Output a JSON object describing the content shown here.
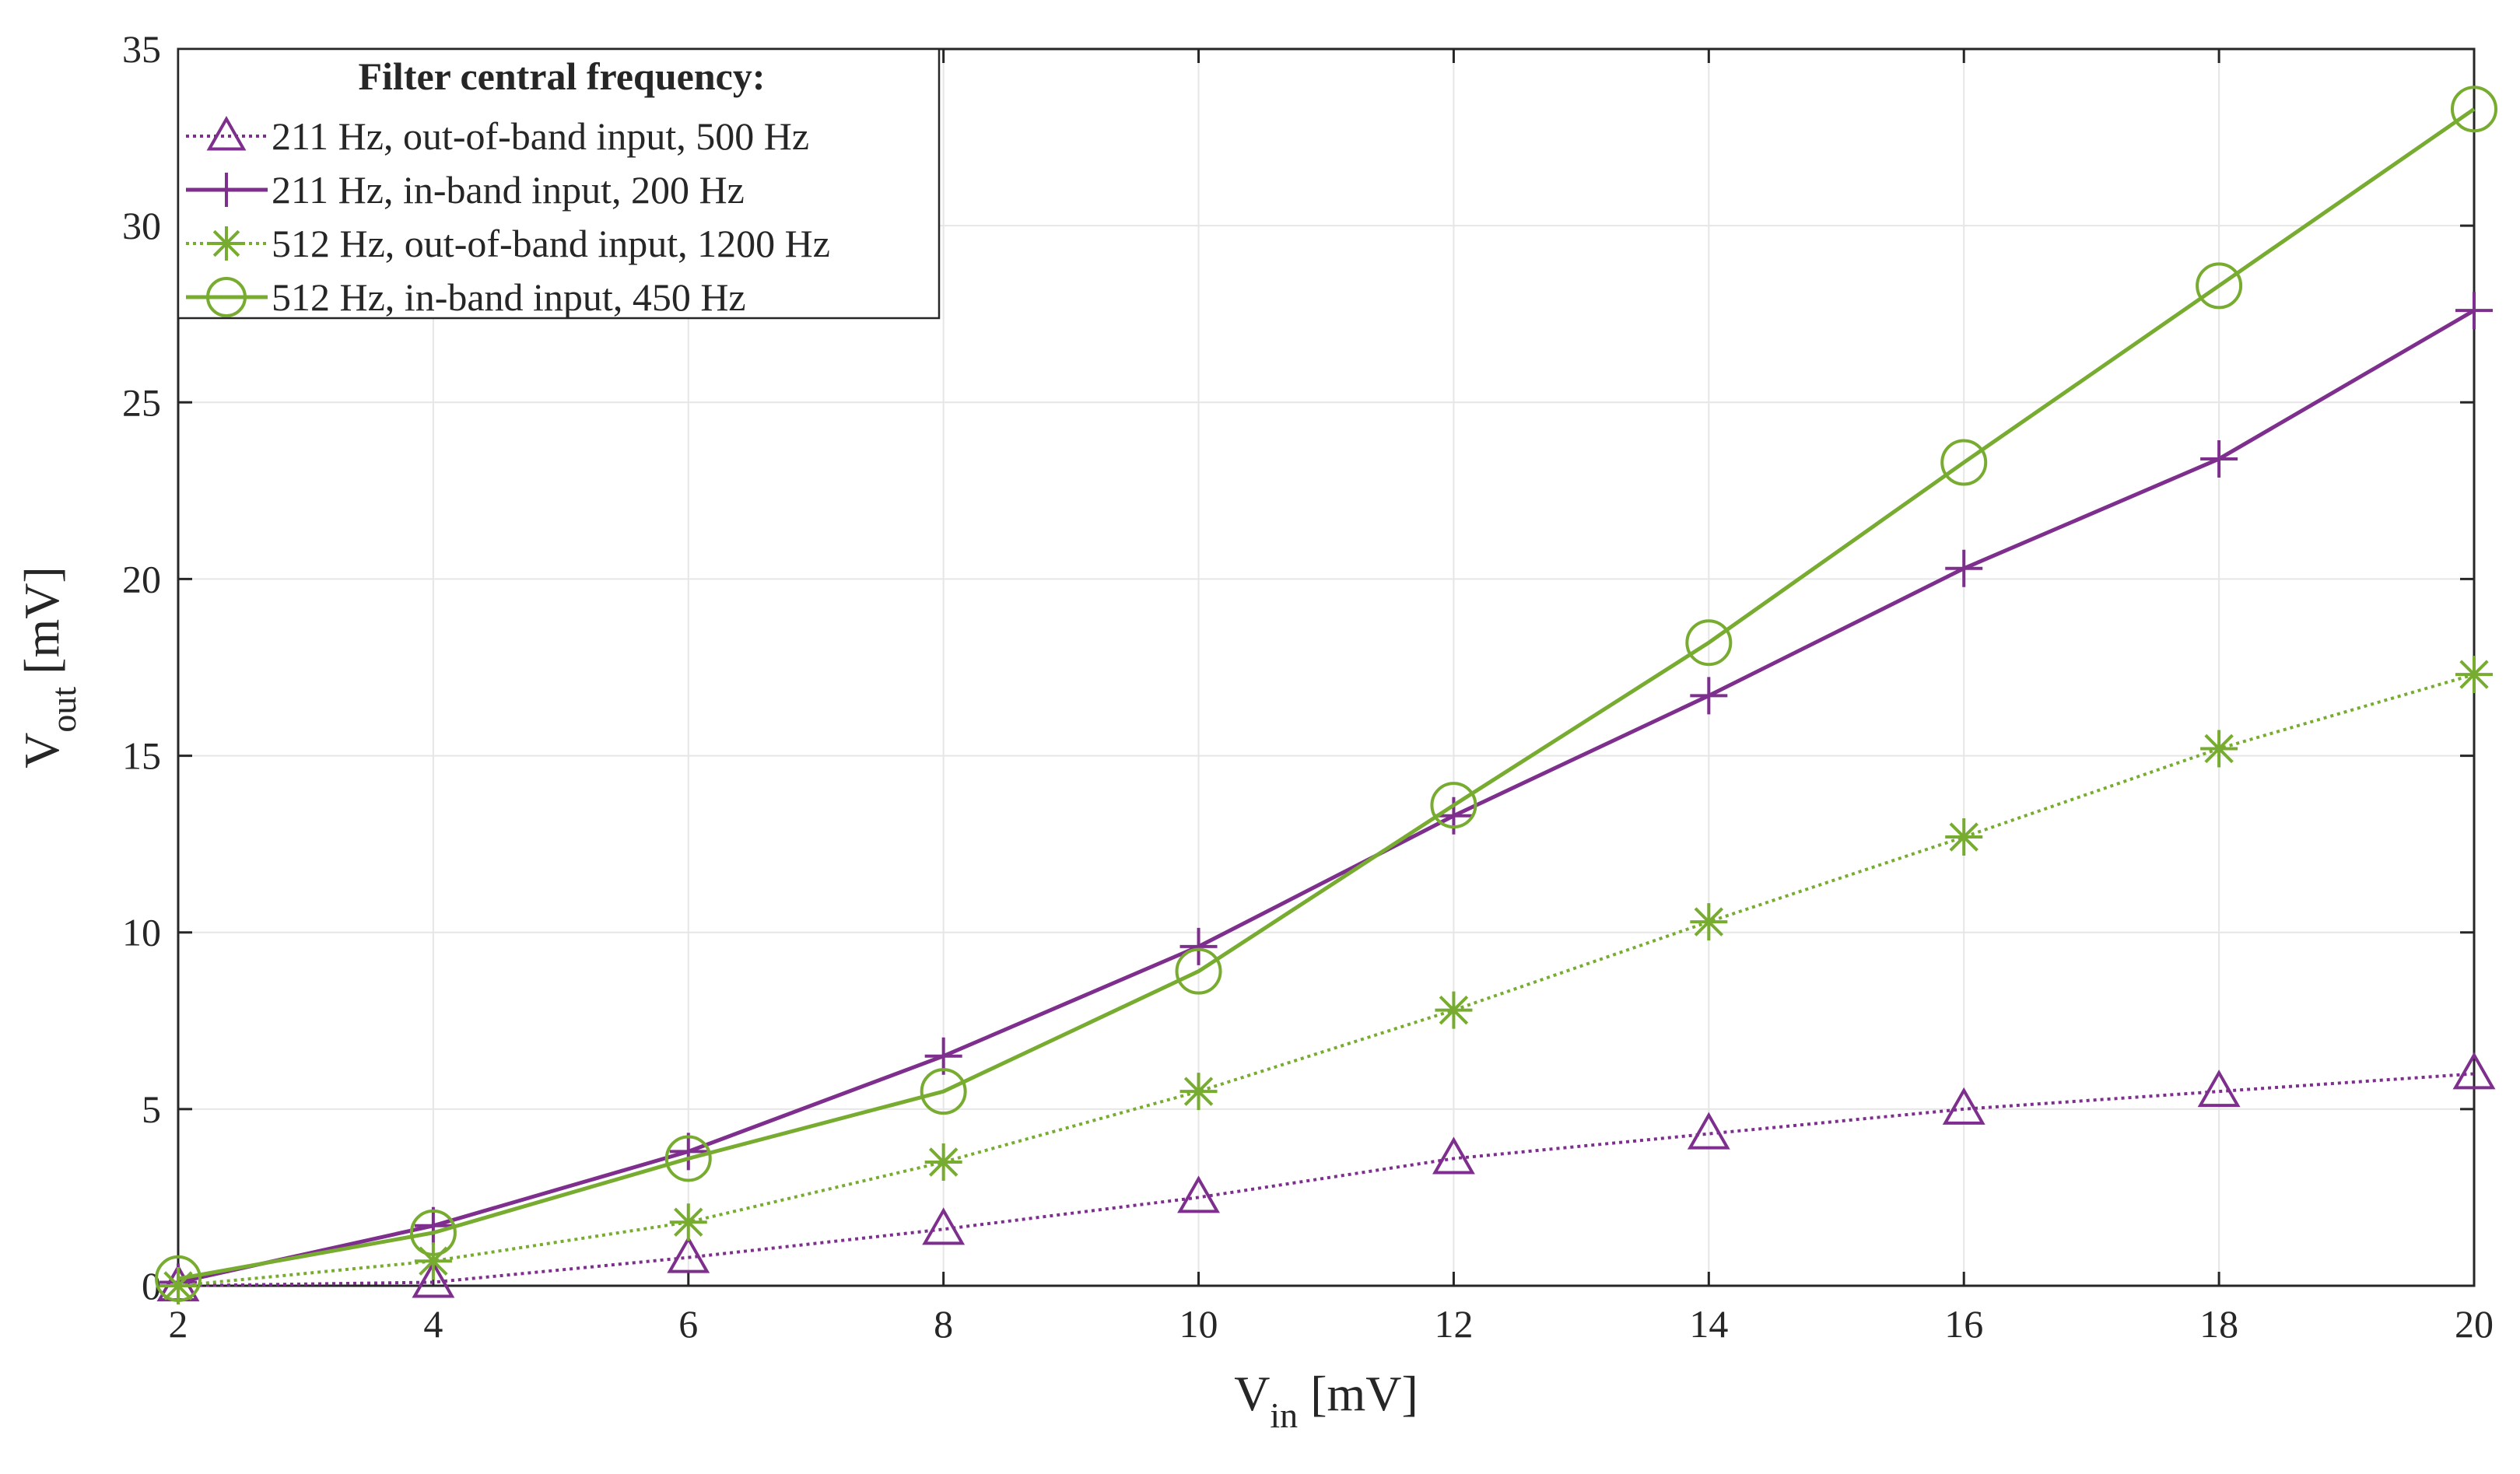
{
  "chart_data": {
    "type": "line",
    "title": "",
    "x": [
      2,
      4,
      6,
      8,
      10,
      12,
      14,
      16,
      18,
      20
    ],
    "xlim": [
      2,
      20
    ],
    "ylim": [
      0,
      35
    ],
    "xticks": [
      "2",
      "4",
      "6",
      "8",
      "10",
      "12",
      "14",
      "16",
      "18",
      "20"
    ],
    "yticks": [
      "0",
      "5",
      "10",
      "15",
      "20",
      "25",
      "30",
      "35"
    ],
    "xlabel": {
      "main": "V",
      "sub": "in",
      "unit": " [mV]"
    },
    "ylabel": {
      "main": "V",
      "sub": "out",
      "unit": " [mV]"
    },
    "grid": true,
    "legend": {
      "title": "Filter central frequency:",
      "position": "top-left"
    },
    "series": [
      {
        "name": "211 Hz, out-of-band input, 500 Hz",
        "color": "#7E2F8E",
        "marker": "triangle",
        "linestyle": "dotted",
        "values": [
          0.0,
          0.1,
          0.8,
          1.6,
          2.5,
          3.6,
          4.3,
          5.0,
          5.5,
          6.0
        ]
      },
      {
        "name": "211 Hz, in-band input, 200 Hz",
        "color": "#7E2F8E",
        "marker": "plus",
        "linestyle": "solid",
        "values": [
          0.1,
          1.7,
          3.8,
          6.5,
          9.6,
          13.3,
          16.7,
          20.3,
          23.4,
          27.6
        ]
      },
      {
        "name": "512 Hz, out-of-band input, 1200 Hz",
        "color": "#77AC30",
        "marker": "asterisk",
        "linestyle": "dotted",
        "values": [
          0.0,
          0.7,
          1.8,
          3.5,
          5.5,
          7.8,
          10.3,
          12.7,
          15.2,
          17.3
        ]
      },
      {
        "name": "512 Hz, in-band input, 450 Hz",
        "color": "#77AC30",
        "marker": "circle",
        "linestyle": "solid",
        "values": [
          0.2,
          1.5,
          3.6,
          5.5,
          8.9,
          13.6,
          18.2,
          23.3,
          28.3,
          33.3
        ]
      }
    ]
  }
}
